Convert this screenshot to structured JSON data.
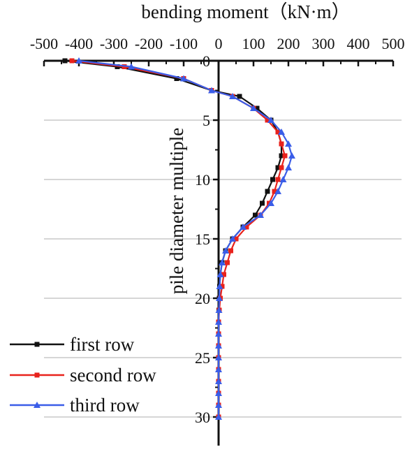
{
  "chart_data": {
    "type": "line",
    "xlabel": "bending moment（kN·m）",
    "ylabel": "pile diameter multiple",
    "x_ticks": [
      -500,
      -400,
      -300,
      -200,
      -100,
      0,
      100,
      200,
      300,
      400,
      500
    ],
    "x_tick_labels": [
      "-500",
      "-400",
      "-300",
      "-200",
      "-100",
      "0",
      "100",
      "200",
      "300",
      "400",
      "500"
    ],
    "y_ticks": [
      0,
      5,
      10,
      15,
      20,
      25,
      30
    ],
    "y_tick_labels": [
      "0",
      "5",
      "10",
      "15",
      "20",
      "25",
      "30"
    ],
    "xlim": [
      -500,
      500
    ],
    "ylim": [
      0,
      32
    ],
    "y_inverted": true,
    "x_axis_position": "top",
    "grid": "horizontal",
    "legend_position": "bottom-left",
    "series": [
      {
        "name": "first row",
        "color": "#111111",
        "marker": "square",
        "points": [
          [
            -440,
            0
          ],
          [
            -290,
            0.5
          ],
          [
            -120,
            1.5
          ],
          [
            -20,
            2.5
          ],
          [
            60,
            3.0
          ],
          [
            110,
            4.0
          ],
          [
            150,
            5.0
          ],
          [
            170,
            6.0
          ],
          [
            180,
            7.0
          ],
          [
            180,
            8.0
          ],
          [
            170,
            9.0
          ],
          [
            155,
            10.0
          ],
          [
            140,
            11.0
          ],
          [
            125,
            12.0
          ],
          [
            105,
            13.0
          ],
          [
            70,
            14.0
          ],
          [
            40,
            15.0
          ],
          [
            20,
            16.0
          ],
          [
            10,
            17.0
          ],
          [
            5,
            18.0
          ],
          [
            3,
            19.0
          ],
          [
            2,
            20.0
          ],
          [
            1,
            21.0
          ],
          [
            0,
            22.0
          ],
          [
            0,
            23.0
          ],
          [
            0,
            24.0
          ],
          [
            0,
            25.0
          ],
          [
            0,
            26.0
          ],
          [
            0,
            27.0
          ],
          [
            0,
            28.0
          ],
          [
            0,
            29.0
          ],
          [
            0,
            30.0
          ]
        ]
      },
      {
        "name": "second row",
        "color": "#e8221c",
        "marker": "square",
        "points": [
          [
            -420,
            0
          ],
          [
            -270,
            0.5
          ],
          [
            -100,
            1.5
          ],
          [
            -20,
            2.5
          ],
          [
            40,
            3.0
          ],
          [
            100,
            4.0
          ],
          [
            140,
            5.0
          ],
          [
            170,
            6.0
          ],
          [
            180,
            7.0
          ],
          [
            190,
            8.0
          ],
          [
            180,
            9.0
          ],
          [
            170,
            10.0
          ],
          [
            160,
            11.0
          ],
          [
            145,
            12.0
          ],
          [
            120,
            13.0
          ],
          [
            80,
            14.0
          ],
          [
            50,
            15.0
          ],
          [
            35,
            16.0
          ],
          [
            25,
            17.0
          ],
          [
            15,
            18.0
          ],
          [
            10,
            19.0
          ],
          [
            5,
            20.0
          ],
          [
            2,
            21.0
          ],
          [
            0,
            22.0
          ],
          [
            0,
            23.0
          ],
          [
            0,
            24.0
          ],
          [
            0,
            25.0
          ],
          [
            0,
            26.0
          ],
          [
            0,
            27.0
          ],
          [
            0,
            28.0
          ],
          [
            0,
            29.0
          ],
          [
            0,
            30.0
          ]
        ]
      },
      {
        "name": "third row",
        "color": "#3a5de8",
        "marker": "triangle",
        "points": [
          [
            -400,
            0
          ],
          [
            -250,
            0.5
          ],
          [
            -100,
            1.5
          ],
          [
            -20,
            2.5
          ],
          [
            40,
            3.0
          ],
          [
            100,
            4.0
          ],
          [
            150,
            5.0
          ],
          [
            180,
            6.0
          ],
          [
            200,
            7.0
          ],
          [
            210,
            8.0
          ],
          [
            200,
            9.0
          ],
          [
            185,
            10.0
          ],
          [
            170,
            11.0
          ],
          [
            150,
            12.0
          ],
          [
            120,
            13.0
          ],
          [
            70,
            14.0
          ],
          [
            40,
            15.0
          ],
          [
            20,
            16.0
          ],
          [
            10,
            17.0
          ],
          [
            5,
            18.0
          ],
          [
            3,
            19.0
          ],
          [
            2,
            20.0
          ],
          [
            1,
            21.0
          ],
          [
            0,
            22.0
          ],
          [
            0,
            23.0
          ],
          [
            0,
            24.0
          ],
          [
            0,
            25.0
          ],
          [
            0,
            26.0
          ],
          [
            0,
            27.0
          ],
          [
            0,
            28.0
          ],
          [
            0,
            29.0
          ],
          [
            0,
            30.0
          ]
        ]
      }
    ]
  }
}
